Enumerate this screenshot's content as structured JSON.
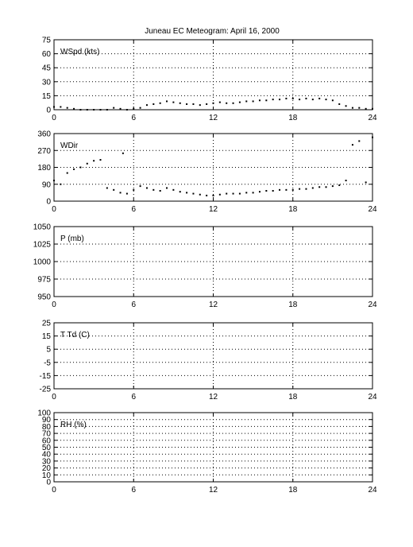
{
  "figure": {
    "title": "Juneau EC Meteogram:      April 16, 2000"
  },
  "chart_data": [
    {
      "type": "scatter",
      "panel_label": "WSpd (kts)",
      "xlim": [
        0,
        24
      ],
      "ylim": [
        0,
        75
      ],
      "xticks": [
        "0",
        "6",
        "12",
        "18",
        "24"
      ],
      "yticks": [
        "0",
        "15",
        "30",
        "45",
        "60",
        "75"
      ],
      "grid": true,
      "series": [
        {
          "marker": "dot",
          "x": [
            0,
            0.5,
            1,
            1.5,
            2,
            2.5,
            3,
            3.5,
            4,
            4.5,
            5,
            5.5,
            6,
            6.5,
            7,
            7.5,
            8,
            8.5,
            9,
            9.5,
            10,
            10.5,
            11,
            11.5,
            12,
            12.5,
            13,
            13.5,
            14,
            14.5,
            15,
            15.5,
            16,
            16.5,
            17,
            17.5,
            18,
            18.5,
            19,
            19.5,
            20,
            20.5,
            21,
            21.5,
            22,
            22.5,
            23,
            23.5,
            24
          ],
          "y": [
            3,
            3,
            2,
            1,
            0,
            0,
            0,
            0,
            0,
            2,
            1,
            0,
            1,
            2,
            5,
            6,
            7,
            9,
            8,
            7,
            6,
            6,
            5,
            6,
            7,
            8,
            7,
            7,
            8,
            9,
            9,
            10,
            10,
            11,
            11,
            12,
            12,
            11,
            12,
            11,
            12,
            11,
            10,
            6,
            4,
            2,
            2,
            1,
            1
          ]
        }
      ]
    },
    {
      "type": "scatter",
      "panel_label": "WDir",
      "xlim": [
        0,
        24
      ],
      "ylim": [
        0,
        360
      ],
      "xticks": [
        "0",
        "6",
        "12",
        "18",
        "24"
      ],
      "yticks": [
        "0",
        "90",
        "180",
        "270",
        "360"
      ],
      "grid": true,
      "series": [
        {
          "marker": "dot",
          "x": [
            0,
            0.5,
            1,
            1.5,
            2,
            2.5,
            3,
            3.5,
            4,
            4.5,
            5,
            5.2,
            5.5,
            6,
            6.5,
            7,
            7.5,
            8,
            8.5,
            9,
            9.5,
            10,
            10.5,
            11,
            11.5,
            12,
            12.5,
            13,
            13.5,
            14,
            14.5,
            15,
            15.5,
            16,
            16.5,
            17,
            17.5,
            18,
            18.5,
            19,
            19.5,
            20,
            20.5,
            21,
            21.5,
            22,
            22.5,
            23,
            23.5,
            24
          ],
          "y": [
            110,
            90,
            150,
            170,
            180,
            200,
            215,
            220,
            70,
            60,
            45,
            255,
            40,
            60,
            80,
            70,
            60,
            55,
            70,
            60,
            50,
            45,
            40,
            35,
            30,
            30,
            35,
            40,
            40,
            40,
            45,
            45,
            50,
            55,
            55,
            60,
            60,
            60,
            65,
            65,
            70,
            75,
            75,
            80,
            85,
            110,
            300,
            320,
            100,
            340
          ]
        }
      ]
    },
    {
      "type": "scatter",
      "panel_label": "P (mb)",
      "xlim": [
        0,
        24
      ],
      "ylim": [
        950,
        1050
      ],
      "xticks": [
        "0",
        "6",
        "12",
        "18",
        "24"
      ],
      "yticks": [
        "950",
        "975",
        "1000",
        "1025",
        "1050"
      ],
      "grid": true,
      "series": []
    },
    {
      "type": "scatter",
      "panel_label": "T Td (C)",
      "xlim": [
        0,
        24
      ],
      "ylim": [
        -25,
        25
      ],
      "xticks": [
        "0",
        "6",
        "12",
        "18",
        "24"
      ],
      "yticks": [
        "-25",
        "-15",
        "-5",
        "5",
        "15",
        "25"
      ],
      "grid": true,
      "series": []
    },
    {
      "type": "scatter",
      "panel_label": "RH (%)",
      "xlim": [
        0,
        24
      ],
      "ylim": [
        0,
        100
      ],
      "xticks": [
        "0",
        "6",
        "12",
        "18",
        "24"
      ],
      "yticks": [
        "0",
        "10",
        "20",
        "30",
        "40",
        "50",
        "60",
        "70",
        "80",
        "90",
        "100"
      ],
      "grid": true,
      "series": []
    }
  ]
}
